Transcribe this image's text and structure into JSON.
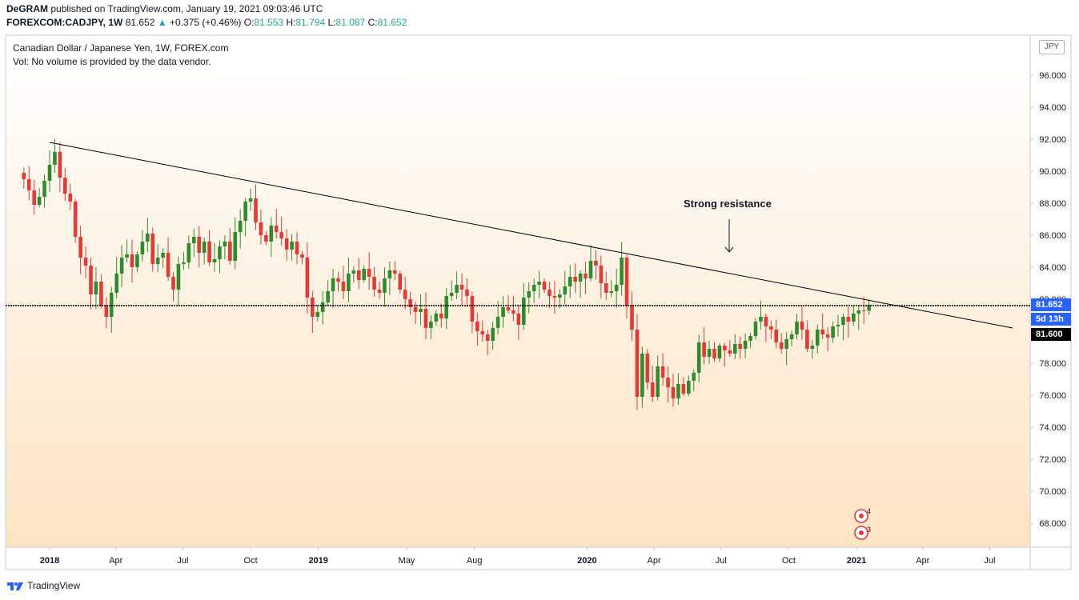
{
  "header": {
    "author": "DeGRAM",
    "published_text": "published on TradingView.com, January 19, 2021 09:03:46 UTC",
    "symbol_line": "FOREXCOM:CADJPY, 1W",
    "last_price": "81.652",
    "change_arrow": "▲",
    "change": "+0.375 (+0.46%)",
    "o_label": "O:",
    "o": "81.553",
    "h_label": "H:",
    "h": "81.794",
    "l_label": "L:",
    "l": "81.087",
    "c_label": "C:",
    "c": "81.652"
  },
  "legend": {
    "title": "Canadian Dollar / Japanese Yen, 1W, FOREX.com",
    "volume_note": "Vol: No volume is provided by the data vendor."
  },
  "currency_label": "JPY",
  "price_labels": {
    "last": "81.652",
    "countdown": "5d 13h",
    "level": "81.600"
  },
  "annotation": "Strong resistance",
  "event_badges": [
    "4",
    "3"
  ],
  "footer": {
    "brand": "TradingView"
  },
  "colors": {
    "up": "#26a69a",
    "candle_up": "#2e8b2e",
    "candle_down": "#e53935",
    "last_price_bg": "#2962ff",
    "level_bg": "#000000",
    "bg_top": "#ffffff",
    "bg_bottom": "#fde4c4"
  },
  "chart_data": {
    "type": "candlestick",
    "symbol": "FOREXCOM:CADJPY",
    "interval": "1W",
    "y_ticks": [
      "68.000",
      "70.000",
      "72.000",
      "74.000",
      "76.000",
      "78.000",
      "80.000",
      "82.000",
      "84.000",
      "86.000",
      "88.000",
      "90.000",
      "92.000",
      "94.000",
      "96.000"
    ],
    "x_ticks": [
      "2018",
      "Apr",
      "Jul",
      "Oct",
      "2019",
      "May",
      "Aug",
      "2020",
      "Apr",
      "Jul",
      "Oct",
      "2021",
      "Apr",
      "Jul"
    ],
    "x_ticks_bold": [
      "2018",
      "2019",
      "2020",
      "2021"
    ],
    "x_ticks_dates": [
      "2018-01-01",
      "2018-04-01",
      "2018-07-01",
      "2018-10-01",
      "2019-01-01",
      "2019-05-01",
      "2019-08-01",
      "2020-01-01",
      "2020-04-01",
      "2020-07-01",
      "2020-10-01",
      "2021-01-01",
      "2021-04-01",
      "2021-07-01"
    ],
    "ylim": [
      66.5,
      98.5
    ],
    "horizontal_level": 81.6,
    "last_close": 81.652,
    "trendline": {
      "start": {
        "date": "2018-01-01",
        "price": 91.8
      },
      "end": {
        "date": "2021-08-01",
        "price": 80.2
      }
    },
    "weekly_closes": [
      {
        "date": "2017-11-27",
        "close": 89.5
      },
      {
        "date": "2017-12-04",
        "close": 88.8
      },
      {
        "date": "2017-12-11",
        "close": 87.9
      },
      {
        "date": "2017-12-18",
        "close": 88.4
      },
      {
        "date": "2017-12-25",
        "close": 89.4
      },
      {
        "date": "2018-01-01",
        "close": 90.4
      },
      {
        "date": "2018-01-08",
        "close": 91.2
      },
      {
        "date": "2018-01-15",
        "close": 89.6
      },
      {
        "date": "2018-01-22",
        "close": 88.6
      },
      {
        "date": "2018-01-29",
        "close": 88.1
      },
      {
        "date": "2018-02-05",
        "close": 85.9
      },
      {
        "date": "2018-02-12",
        "close": 84.6
      },
      {
        "date": "2018-02-19",
        "close": 84.1
      },
      {
        "date": "2018-02-26",
        "close": 82.3
      },
      {
        "date": "2018-03-05",
        "close": 83.1
      },
      {
        "date": "2018-03-12",
        "close": 81.6
      },
      {
        "date": "2018-03-19",
        "close": 80.9
      },
      {
        "date": "2018-03-26",
        "close": 82.4
      },
      {
        "date": "2018-04-02",
        "close": 83.6
      },
      {
        "date": "2018-04-09",
        "close": 84.6
      },
      {
        "date": "2018-04-16",
        "close": 84.8
      },
      {
        "date": "2018-04-23",
        "close": 84.0
      },
      {
        "date": "2018-04-30",
        "close": 84.8
      },
      {
        "date": "2018-05-07",
        "close": 85.6
      },
      {
        "date": "2018-05-14",
        "close": 86.1
      },
      {
        "date": "2018-05-21",
        "close": 84.2
      },
      {
        "date": "2018-05-28",
        "close": 84.6
      },
      {
        "date": "2018-06-04",
        "close": 84.9
      },
      {
        "date": "2018-06-11",
        "close": 83.4
      },
      {
        "date": "2018-06-18",
        "close": 82.6
      },
      {
        "date": "2018-06-25",
        "close": 84.2
      },
      {
        "date": "2018-07-02",
        "close": 84.3
      },
      {
        "date": "2018-07-09",
        "close": 85.5
      },
      {
        "date": "2018-07-16",
        "close": 85.9
      },
      {
        "date": "2018-07-23",
        "close": 84.9
      },
      {
        "date": "2018-07-30",
        "close": 85.6
      },
      {
        "date": "2018-08-06",
        "close": 84.3
      },
      {
        "date": "2018-08-13",
        "close": 84.5
      },
      {
        "date": "2018-08-20",
        "close": 85.3
      },
      {
        "date": "2018-08-27",
        "close": 85.6
      },
      {
        "date": "2018-09-03",
        "close": 84.4
      },
      {
        "date": "2018-09-10",
        "close": 86.2
      },
      {
        "date": "2018-09-17",
        "close": 86.9
      },
      {
        "date": "2018-09-24",
        "close": 88.1
      },
      {
        "date": "2018-10-01",
        "close": 88.3
      },
      {
        "date": "2018-10-08",
        "close": 86.8
      },
      {
        "date": "2018-10-15",
        "close": 86.0
      },
      {
        "date": "2018-10-22",
        "close": 85.6
      },
      {
        "date": "2018-10-29",
        "close": 86.6
      },
      {
        "date": "2018-11-05",
        "close": 86.2
      },
      {
        "date": "2018-11-12",
        "close": 85.8
      },
      {
        "date": "2018-11-19",
        "close": 85.1
      },
      {
        "date": "2018-11-26",
        "close": 85.6
      },
      {
        "date": "2018-12-03",
        "close": 84.8
      },
      {
        "date": "2018-12-10",
        "close": 84.6
      },
      {
        "date": "2018-12-17",
        "close": 82.1
      },
      {
        "date": "2018-12-24",
        "close": 80.9
      },
      {
        "date": "2018-12-31",
        "close": 81.2
      },
      {
        "date": "2019-01-07",
        "close": 81.8
      },
      {
        "date": "2019-01-14",
        "close": 82.5
      },
      {
        "date": "2019-01-21",
        "close": 83.3
      },
      {
        "date": "2019-01-28",
        "close": 83.1
      },
      {
        "date": "2019-02-04",
        "close": 82.5
      },
      {
        "date": "2019-02-11",
        "close": 83.6
      },
      {
        "date": "2019-02-18",
        "close": 83.8
      },
      {
        "date": "2019-02-25",
        "close": 83.2
      },
      {
        "date": "2019-03-04",
        "close": 83.9
      },
      {
        "date": "2019-03-11",
        "close": 83.4
      },
      {
        "date": "2019-03-18",
        "close": 82.6
      },
      {
        "date": "2019-03-25",
        "close": 82.4
      },
      {
        "date": "2019-04-01",
        "close": 83.3
      },
      {
        "date": "2019-04-08",
        "close": 83.8
      },
      {
        "date": "2019-04-15",
        "close": 83.6
      },
      {
        "date": "2019-04-22",
        "close": 82.6
      },
      {
        "date": "2019-04-29",
        "close": 82.0
      },
      {
        "date": "2019-05-06",
        "close": 81.5
      },
      {
        "date": "2019-05-13",
        "close": 81.2
      },
      {
        "date": "2019-05-20",
        "close": 81.4
      },
      {
        "date": "2019-05-27",
        "close": 80.2
      },
      {
        "date": "2019-06-03",
        "close": 80.6
      },
      {
        "date": "2019-06-10",
        "close": 81.1
      },
      {
        "date": "2019-06-17",
        "close": 80.8
      },
      {
        "date": "2019-06-24",
        "close": 82.2
      },
      {
        "date": "2019-07-01",
        "close": 82.4
      },
      {
        "date": "2019-07-08",
        "close": 82.9
      },
      {
        "date": "2019-07-15",
        "close": 82.6
      },
      {
        "date": "2019-07-22",
        "close": 82.2
      },
      {
        "date": "2019-07-29",
        "close": 80.6
      },
      {
        "date": "2019-08-05",
        "close": 80.0
      },
      {
        "date": "2019-08-12",
        "close": 79.8
      },
      {
        "date": "2019-08-19",
        "close": 79.4
      },
      {
        "date": "2019-08-26",
        "close": 80.2
      },
      {
        "date": "2019-09-02",
        "close": 80.9
      },
      {
        "date": "2019-09-09",
        "close": 81.5
      },
      {
        "date": "2019-09-16",
        "close": 81.3
      },
      {
        "date": "2019-09-23",
        "close": 81.1
      },
      {
        "date": "2019-09-30",
        "close": 80.4
      },
      {
        "date": "2019-10-07",
        "close": 82.1
      },
      {
        "date": "2019-10-14",
        "close": 82.5
      },
      {
        "date": "2019-10-21",
        "close": 82.9
      },
      {
        "date": "2019-10-28",
        "close": 83.1
      },
      {
        "date": "2019-11-04",
        "close": 82.6
      },
      {
        "date": "2019-11-11",
        "close": 82.2
      },
      {
        "date": "2019-11-18",
        "close": 82.1
      },
      {
        "date": "2019-11-25",
        "close": 82.3
      },
      {
        "date": "2019-12-02",
        "close": 82.8
      },
      {
        "date": "2019-12-09",
        "close": 83.4
      },
      {
        "date": "2019-12-16",
        "close": 83.1
      },
      {
        "date": "2019-12-23",
        "close": 83.6
      },
      {
        "date": "2019-12-30",
        "close": 83.3
      },
      {
        "date": "2020-01-06",
        "close": 84.4
      },
      {
        "date": "2020-01-13",
        "close": 84.1
      },
      {
        "date": "2020-01-20",
        "close": 83.0
      },
      {
        "date": "2020-01-27",
        "close": 82.4
      },
      {
        "date": "2020-02-03",
        "close": 82.5
      },
      {
        "date": "2020-02-10",
        "close": 82.9
      },
      {
        "date": "2020-02-17",
        "close": 84.6
      },
      {
        "date": "2020-02-24",
        "close": 81.6
      },
      {
        "date": "2020-03-02",
        "close": 80.1
      },
      {
        "date": "2020-03-09",
        "close": 75.9
      },
      {
        "date": "2020-03-16",
        "close": 78.6
      },
      {
        "date": "2020-03-23",
        "close": 76.8
      },
      {
        "date": "2020-03-30",
        "close": 75.9
      },
      {
        "date": "2020-04-06",
        "close": 77.8
      },
      {
        "date": "2020-04-13",
        "close": 77.1
      },
      {
        "date": "2020-04-20",
        "close": 76.5
      },
      {
        "date": "2020-04-27",
        "close": 75.8
      },
      {
        "date": "2020-05-04",
        "close": 76.7
      },
      {
        "date": "2020-05-11",
        "close": 76.1
      },
      {
        "date": "2020-05-18",
        "close": 76.9
      },
      {
        "date": "2020-05-25",
        "close": 77.4
      },
      {
        "date": "2020-06-01",
        "close": 79.3
      },
      {
        "date": "2020-06-08",
        "close": 78.4
      },
      {
        "date": "2020-06-15",
        "close": 78.9
      },
      {
        "date": "2020-06-22",
        "close": 78.3
      },
      {
        "date": "2020-06-29",
        "close": 79.1
      },
      {
        "date": "2020-07-06",
        "close": 78.8
      },
      {
        "date": "2020-07-13",
        "close": 78.6
      },
      {
        "date": "2020-07-20",
        "close": 79.2
      },
      {
        "date": "2020-07-27",
        "close": 78.9
      },
      {
        "date": "2020-08-03",
        "close": 79.4
      },
      {
        "date": "2020-08-10",
        "close": 79.7
      },
      {
        "date": "2020-08-17",
        "close": 80.6
      },
      {
        "date": "2020-08-24",
        "close": 80.9
      },
      {
        "date": "2020-08-31",
        "close": 80.3
      },
      {
        "date": "2020-09-07",
        "close": 80.1
      },
      {
        "date": "2020-09-14",
        "close": 79.3
      },
      {
        "date": "2020-09-21",
        "close": 78.9
      },
      {
        "date": "2020-09-28",
        "close": 79.5
      },
      {
        "date": "2020-10-05",
        "close": 79.8
      },
      {
        "date": "2020-10-12",
        "close": 80.6
      },
      {
        "date": "2020-10-19",
        "close": 80.1
      },
      {
        "date": "2020-10-26",
        "close": 78.9
      },
      {
        "date": "2020-11-02",
        "close": 79.1
      },
      {
        "date": "2020-11-09",
        "close": 80.1
      },
      {
        "date": "2020-11-16",
        "close": 79.8
      },
      {
        "date": "2020-11-23",
        "close": 79.6
      },
      {
        "date": "2020-11-30",
        "close": 80.3
      },
      {
        "date": "2020-12-07",
        "close": 80.4
      },
      {
        "date": "2020-12-14",
        "close": 80.9
      },
      {
        "date": "2020-12-21",
        "close": 80.6
      },
      {
        "date": "2020-12-28",
        "close": 81.1
      },
      {
        "date": "2021-01-04",
        "close": 81.3
      },
      {
        "date": "2021-01-11",
        "close": 81.277
      },
      {
        "date": "2021-01-18",
        "close": 81.652
      }
    ]
  }
}
